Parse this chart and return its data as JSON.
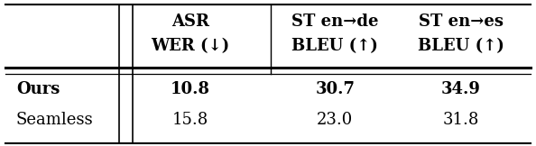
{
  "col_headers_line1": [
    "",
    "ASR",
    "ST en→de",
    "ST en→es"
  ],
  "col_headers_line2": [
    "",
    "WER (↓)",
    "BLEU (↑)",
    "BLEU (↑)"
  ],
  "rows": [
    [
      "Ours",
      "10.8",
      "30.7",
      "34.9"
    ],
    [
      "Seamless",
      "15.8",
      "23.0",
      "31.8"
    ]
  ],
  "bold_row": 0,
  "bg_color": "#ffffff",
  "text_color": "#000000",
  "fontsize": 13
}
